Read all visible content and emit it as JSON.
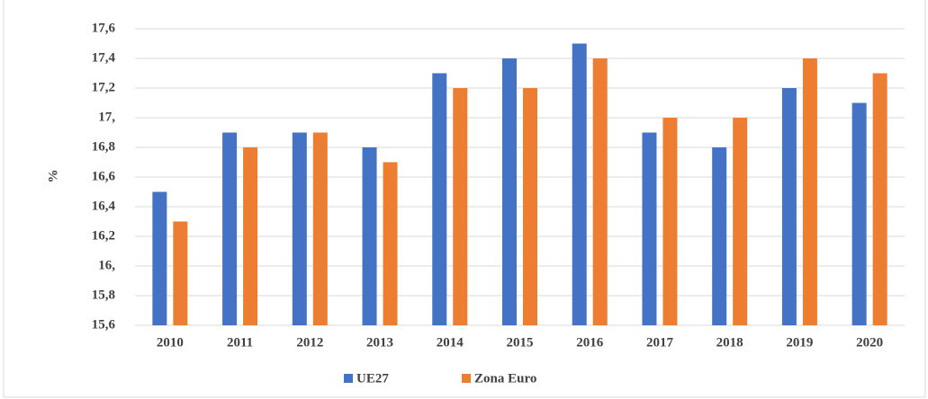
{
  "chart_data": {
    "type": "bar",
    "y_label": "%",
    "categories": [
      "2010",
      "2011",
      "2012",
      "2013",
      "2014",
      "2015",
      "2016",
      "2017",
      "2018",
      "2019",
      "2020"
    ],
    "series": [
      {
        "name": "UE27",
        "color": "#4472c4",
        "values": [
          16.5,
          16.9,
          16.9,
          16.8,
          17.3,
          17.4,
          17.5,
          16.9,
          16.8,
          17.2,
          17.1
        ]
      },
      {
        "name": "Zona Euro",
        "color": "#ed7d31",
        "values": [
          16.3,
          16.8,
          16.9,
          16.7,
          17.2,
          17.2,
          17.4,
          17.0,
          17.0,
          17.4,
          17.3
        ]
      }
    ],
    "ylim": [
      15.6,
      17.6
    ],
    "yticks": [
      {
        "value": 15.6,
        "label": "15,6"
      },
      {
        "value": 15.8,
        "label": "15,8"
      },
      {
        "value": 16,
        "label": "16,"
      },
      {
        "value": 16.2,
        "label": "16,2"
      },
      {
        "value": 16.4,
        "label": "16,4"
      },
      {
        "value": 16.6,
        "label": "16,6"
      },
      {
        "value": 16.8,
        "label": "16,8"
      },
      {
        "value": 17,
        "label": "17,"
      },
      {
        "value": 17.2,
        "label": "17,2"
      },
      {
        "value": 17.4,
        "label": "17,4"
      },
      {
        "value": 17.6,
        "label": "17,6"
      }
    ],
    "grid": true,
    "legend": "bottom"
  }
}
